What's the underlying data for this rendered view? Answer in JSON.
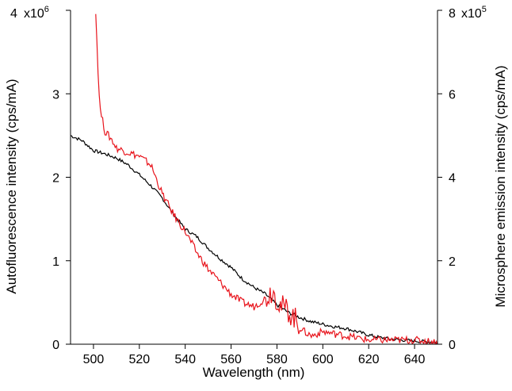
{
  "chart_data": {
    "type": "line",
    "title": "",
    "xlabel": "Wavelength (nm)",
    "ylabel_left": "Autofluorescence intensity (cps/mA)",
    "ylabel_right": "Microsphere emission intensity (cps/mA)",
    "xlim": [
      490,
      650
    ],
    "ylim_left": [
      0,
      4000000
    ],
    "ylim_right": [
      0,
      800000
    ],
    "x_ticks": [
      "500",
      "520",
      "540",
      "560",
      "580",
      "600",
      "620",
      "640"
    ],
    "y_left_ticks": [
      "0",
      "1",
      "2",
      "3",
      "4"
    ],
    "y_right_ticks": [
      "0",
      "2",
      "4",
      "6",
      "8"
    ],
    "y_left_multiplier": "x10",
    "y_left_exponent": "6",
    "y_right_multiplier": "x10",
    "y_right_exponent": "5",
    "grid": false,
    "series": [
      {
        "color": "#000000",
        "axis": "left",
        "x": [
          490,
          495,
          500,
          505,
          510,
          515,
          520,
          525,
          530,
          535,
          540,
          545,
          550,
          555,
          560,
          565,
          570,
          575,
          580,
          585,
          590,
          595,
          600,
          605,
          610,
          615,
          620,
          625,
          630,
          635,
          640,
          645,
          650
        ],
        "y": [
          2500000,
          2440000,
          2320000,
          2280000,
          2230000,
          2150000,
          2030000,
          1900000,
          1750000,
          1550000,
          1380000,
          1290000,
          1150000,
          1030000,
          920000,
          780000,
          680000,
          600000,
          470000,
          380000,
          320000,
          270000,
          240000,
          210000,
          190000,
          150000,
          110000,
          80000,
          60000,
          50000,
          40000,
          30000,
          20000
        ]
      },
      {
        "color": "#e8141c",
        "axis": "right",
        "x": [
          501,
          502,
          503,
          505,
          508,
          510,
          515,
          520,
          525,
          530,
          535,
          540,
          545,
          550,
          555,
          560,
          565,
          570,
          575,
          578,
          582,
          585,
          588,
          590,
          592,
          595,
          600,
          605,
          610,
          620,
          630,
          640,
          650
        ],
        "y": [
          800000,
          650000,
          560000,
          510000,
          490000,
          470000,
          460000,
          450000,
          430000,
          360000,
          310000,
          270000,
          220000,
          180000,
          150000,
          120000,
          100000,
          90000,
          110000,
          130000,
          90000,
          80000,
          60000,
          40000,
          30000,
          20000,
          30000,
          25000,
          20000,
          10000,
          10000,
          10000,
          5000
        ]
      }
    ]
  }
}
